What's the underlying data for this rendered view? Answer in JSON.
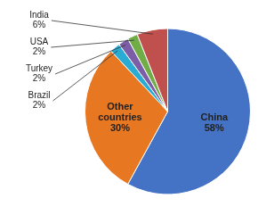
{
  "chart_data": {
    "type": "pie",
    "categories": [
      "China",
      "Other countries",
      "Brazil",
      "Turkey",
      "USA",
      "India"
    ],
    "values": [
      58,
      30,
      2,
      2,
      2,
      6
    ],
    "value_labels": [
      "58%",
      "30%",
      "2%",
      "2%",
      "2%",
      "6%"
    ],
    "colors": [
      "#4472C4",
      "#E87722",
      "#29ABD4",
      "#7B5EA7",
      "#70AD47",
      "#C0504D"
    ],
    "data_labels": true
  }
}
